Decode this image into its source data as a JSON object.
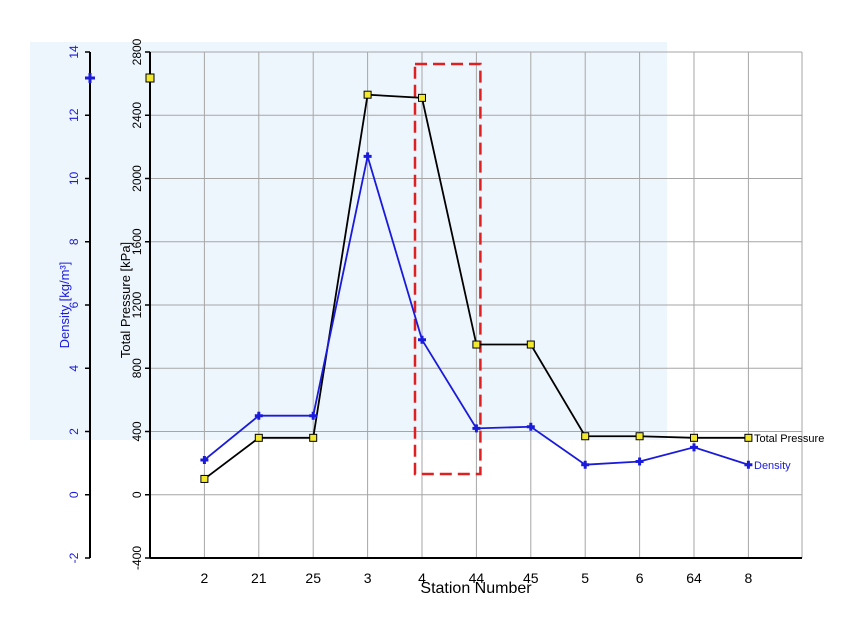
{
  "chart_data": {
    "type": "line",
    "xlabel": "Station Number",
    "categories": [
      "2",
      "21",
      "25",
      "3",
      "4",
      "44",
      "45",
      "5",
      "6",
      "64",
      "8"
    ],
    "axes": {
      "density": {
        "label": "Density [kg/m³]",
        "ylim": [
          -2,
          14
        ],
        "ticks": [
          "-2",
          "0",
          "2",
          "4",
          "6",
          "8",
          "10",
          "12",
          "14"
        ],
        "color": "#1a1adb"
      },
      "pressure": {
        "label": "Total Pressure [kPa]",
        "ylim": [
          -400,
          2800
        ],
        "ticks": [
          "-400",
          "0",
          "400",
          "800",
          "1200",
          "1600",
          "2000",
          "2400",
          "2800"
        ],
        "color": "#000000"
      }
    },
    "series": [
      {
        "name": "Total Pressure",
        "axis": "pressure",
        "color": "#000000",
        "marker_color": "#f2e82e",
        "values": [
          100,
          360,
          360,
          2530,
          2510,
          950,
          950,
          370,
          370,
          360,
          360
        ]
      },
      {
        "name": "Density",
        "axis": "density",
        "color": "#1a1adb",
        "marker_color": "#1a1adb",
        "values": [
          1.1,
          2.5,
          2.5,
          10.7,
          4.9,
          2.1,
          2.15,
          0.95,
          1.05,
          1.5,
          0.95
        ]
      }
    ],
    "grid": true,
    "highlight": {
      "type": "dashed-rectangle",
      "color": "#e02020",
      "from_category": "4",
      "to_category": "44"
    }
  }
}
